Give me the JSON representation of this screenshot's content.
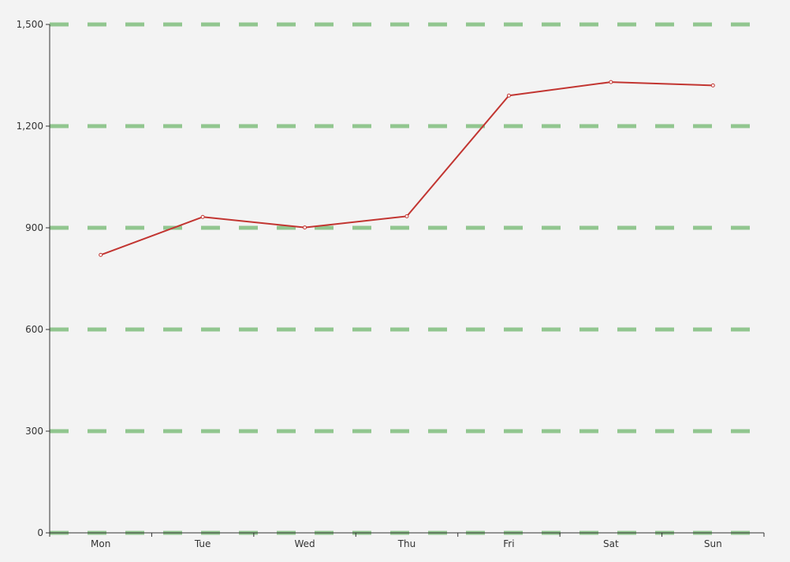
{
  "chart_data": {
    "type": "line",
    "categories": [
      "Mon",
      "Tue",
      "Wed",
      "Thu",
      "Fri",
      "Sat",
      "Sun"
    ],
    "series": [
      {
        "values": [
          820,
          932,
          901,
          934,
          1290,
          1330,
          1320
        ]
      }
    ],
    "y_ticks": [
      0,
      300,
      600,
      900,
      1200,
      1500
    ],
    "y_tick_labels": [
      "0",
      "300",
      "600",
      "900",
      "1,200",
      "1,500"
    ],
    "ylim": [
      0,
      1500
    ],
    "title": "",
    "xlabel": "",
    "ylabel": "",
    "grid": true,
    "colors": {
      "background": "#f3f3f3",
      "line": "#c23531",
      "grid": "#91c68f",
      "axis": "#333333",
      "marker_fill": "#ffffff"
    }
  }
}
